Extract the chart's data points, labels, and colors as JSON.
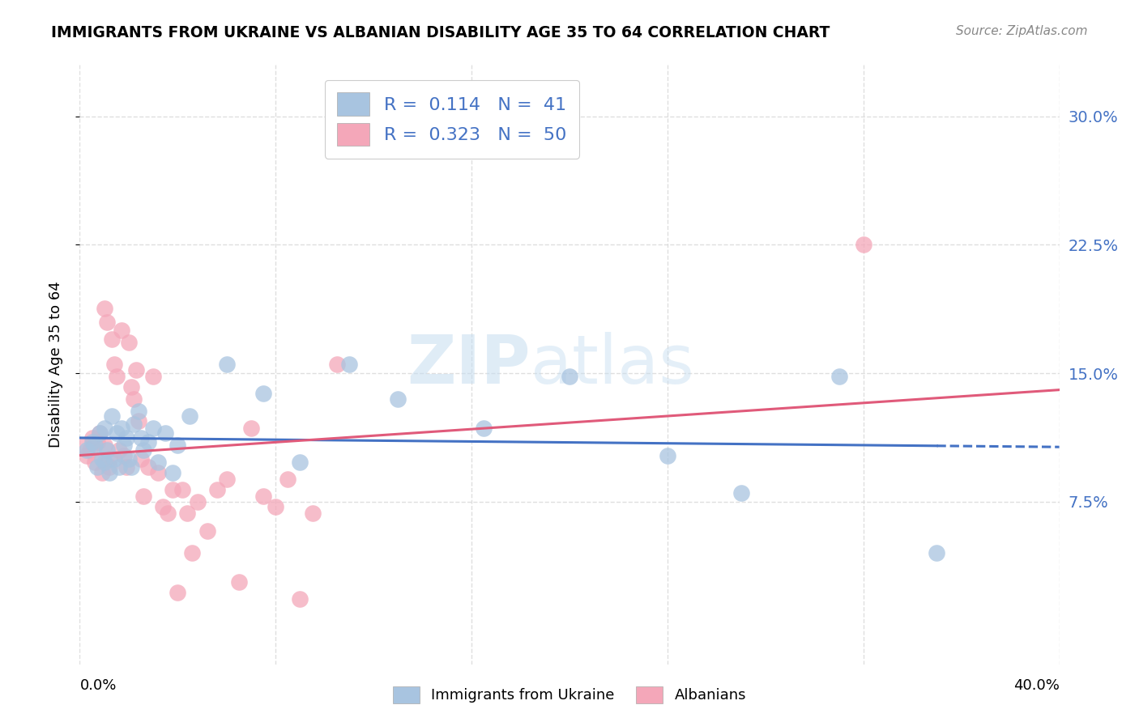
{
  "title": "IMMIGRANTS FROM UKRAINE VS ALBANIAN DISABILITY AGE 35 TO 64 CORRELATION CHART",
  "source": "Source: ZipAtlas.com",
  "ylabel": "Disability Age 35 to 64",
  "xlim": [
    0.0,
    0.4
  ],
  "ylim": [
    -0.02,
    0.33
  ],
  "legend_r_ukraine": "0.114",
  "legend_n_ukraine": "41",
  "legend_r_albanian": "0.323",
  "legend_n_albanian": "50",
  "ukraine_color": "#a8c4e0",
  "albanian_color": "#f4a7b9",
  "ukraine_line_color": "#4472c4",
  "albanian_line_color": "#e05a7a",
  "ukraine_x": [
    0.003,
    0.005,
    0.006,
    0.007,
    0.008,
    0.009,
    0.01,
    0.01,
    0.011,
    0.012,
    0.013,
    0.014,
    0.015,
    0.016,
    0.017,
    0.018,
    0.019,
    0.02,
    0.021,
    0.022,
    0.024,
    0.025,
    0.026,
    0.028,
    0.03,
    0.032,
    0.035,
    0.038,
    0.04,
    0.045,
    0.06,
    0.075,
    0.09,
    0.11,
    0.13,
    0.165,
    0.2,
    0.24,
    0.27,
    0.31,
    0.35
  ],
  "ukraine_y": [
    0.105,
    0.11,
    0.108,
    0.095,
    0.115,
    0.1,
    0.098,
    0.118,
    0.105,
    0.092,
    0.125,
    0.1,
    0.115,
    0.095,
    0.118,
    0.108,
    0.112,
    0.1,
    0.095,
    0.12,
    0.128,
    0.112,
    0.105,
    0.11,
    0.118,
    0.098,
    0.115,
    0.092,
    0.108,
    0.125,
    0.155,
    0.138,
    0.098,
    0.155,
    0.135,
    0.118,
    0.148,
    0.102,
    0.08,
    0.148,
    0.045
  ],
  "albanian_x": [
    0.002,
    0.003,
    0.004,
    0.005,
    0.006,
    0.007,
    0.008,
    0.009,
    0.01,
    0.01,
    0.011,
    0.012,
    0.012,
    0.013,
    0.014,
    0.015,
    0.016,
    0.017,
    0.018,
    0.019,
    0.02,
    0.021,
    0.022,
    0.023,
    0.024,
    0.025,
    0.026,
    0.028,
    0.03,
    0.032,
    0.034,
    0.036,
    0.038,
    0.04,
    0.042,
    0.044,
    0.046,
    0.048,
    0.052,
    0.056,
    0.06,
    0.065,
    0.07,
    0.075,
    0.08,
    0.085,
    0.09,
    0.095,
    0.105,
    0.32
  ],
  "albanian_y": [
    0.108,
    0.102,
    0.105,
    0.112,
    0.098,
    0.11,
    0.115,
    0.092,
    0.188,
    0.108,
    0.18,
    0.1,
    0.095,
    0.17,
    0.155,
    0.148,
    0.105,
    0.175,
    0.102,
    0.095,
    0.168,
    0.142,
    0.135,
    0.152,
    0.122,
    0.1,
    0.078,
    0.095,
    0.148,
    0.092,
    0.072,
    0.068,
    0.082,
    0.022,
    0.082,
    0.068,
    0.045,
    0.075,
    0.058,
    0.082,
    0.088,
    0.028,
    0.118,
    0.078,
    0.072,
    0.088,
    0.018,
    0.068,
    0.155,
    0.225
  ],
  "watermark_zip": "ZIP",
  "watermark_atlas": "atlas",
  "background_color": "#ffffff",
  "grid_color": "#d8d8d8"
}
